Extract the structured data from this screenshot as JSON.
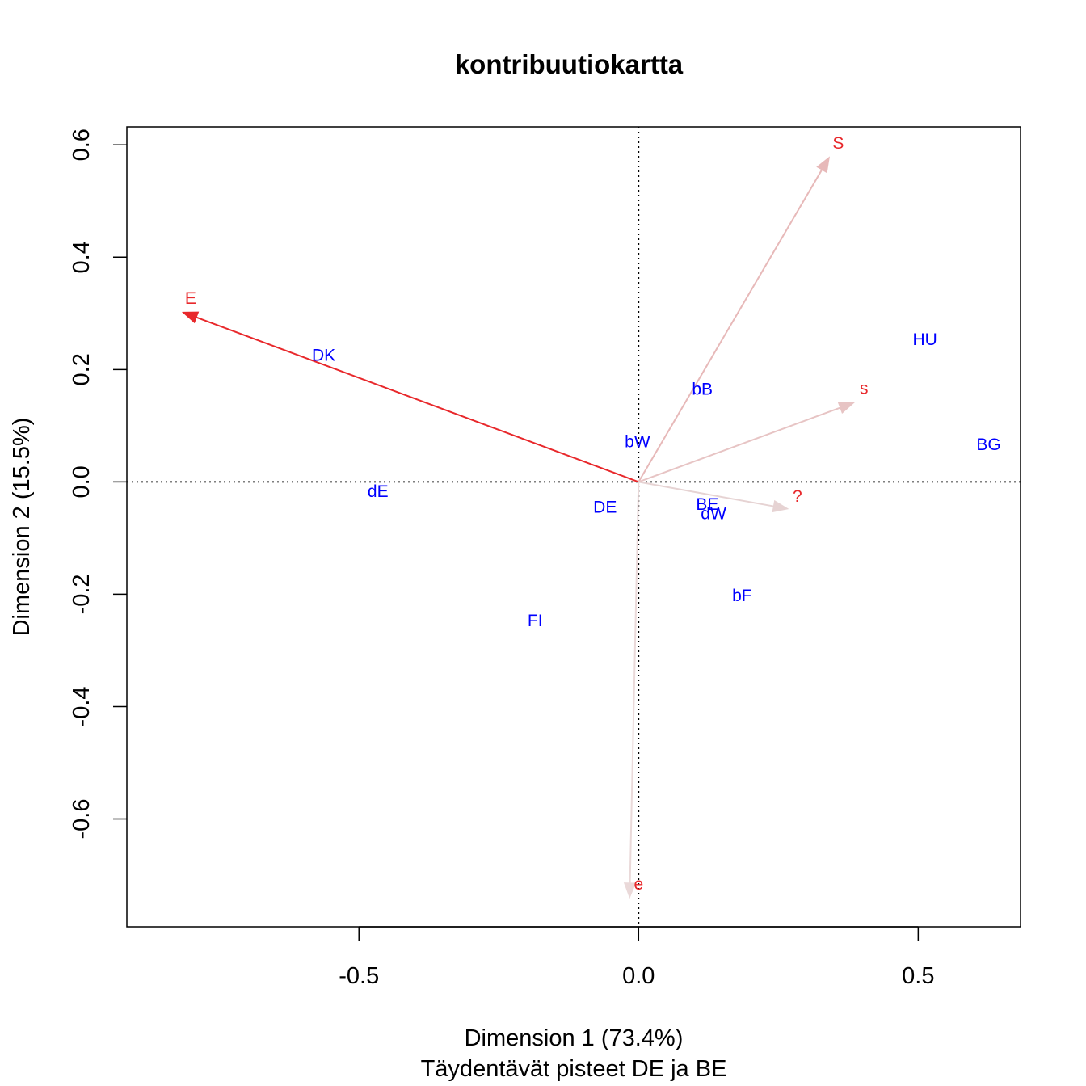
{
  "chart_data": {
    "type": "scatter",
    "title": "kontribuutiokartta",
    "xlabel": "Dimension 1 (73.4%)",
    "xlabel_sub": "Täydentävät pisteet DE ja BE",
    "ylabel": "Dimension 2 (15.5%)",
    "xlim": [
      -0.915,
      0.683
    ],
    "ylim": [
      -0.792,
      0.632
    ],
    "xticks": [
      -0.5,
      0.0,
      0.5
    ],
    "xtick_labels": [
      "-0.5",
      "0.0",
      "0.5"
    ],
    "yticks": [
      -0.6,
      -0.4,
      -0.2,
      0.0,
      0.2,
      0.4,
      0.6
    ],
    "ytick_labels": [
      "-0.6",
      "-0.4",
      "-0.2",
      "0.0",
      "0.2",
      "0.4",
      "0.6"
    ],
    "reference_lines": {
      "x": 0,
      "y": 0,
      "style": "dotted"
    },
    "row_points": {
      "color": "#0000ff",
      "points": [
        {
          "label": "DK",
          "x": -0.563,
          "y": 0.226
        },
        {
          "label": "HU",
          "x": 0.512,
          "y": 0.254
        },
        {
          "label": "bB",
          "x": 0.114,
          "y": 0.165
        },
        {
          "label": "BG",
          "x": 0.626,
          "y": 0.067
        },
        {
          "label": "bW",
          "x": -0.002,
          "y": 0.072
        },
        {
          "label": "dE",
          "x": -0.466,
          "y": -0.017
        },
        {
          "label": "DE",
          "x": -0.06,
          "y": -0.045
        },
        {
          "label": "BE",
          "x": 0.123,
          "y": -0.04
        },
        {
          "label": "dW",
          "x": 0.134,
          "y": -0.056
        },
        {
          "label": "bF",
          "x": 0.185,
          "y": -0.202
        },
        {
          "label": "FI",
          "x": -0.185,
          "y": -0.247
        }
      ]
    },
    "column_arrows": [
      {
        "label": "E",
        "x": -0.815,
        "y": 0.302,
        "label_x": -0.801,
        "label_y": 0.327,
        "color": "#e8282b"
      },
      {
        "label": "S",
        "x": 0.341,
        "y": 0.578,
        "label_x": 0.357,
        "label_y": 0.603,
        "color": "#e7b9b9"
      },
      {
        "label": "s",
        "x": 0.385,
        "y": 0.141,
        "label_x": 0.403,
        "label_y": 0.167,
        "color": "#e7c4c4"
      },
      {
        "label": "?",
        "x": 0.267,
        "y": -0.048,
        "label_x": 0.284,
        "label_y": -0.025,
        "color": "#e6d3d3"
      },
      {
        "label": "e",
        "x": -0.016,
        "y": -0.74,
        "label_x": 0.0,
        "label_y": -0.716,
        "color": "#ead9d9"
      }
    ],
    "arrow_label_color": "#e8282b",
    "grid": false,
    "legend": "none"
  }
}
